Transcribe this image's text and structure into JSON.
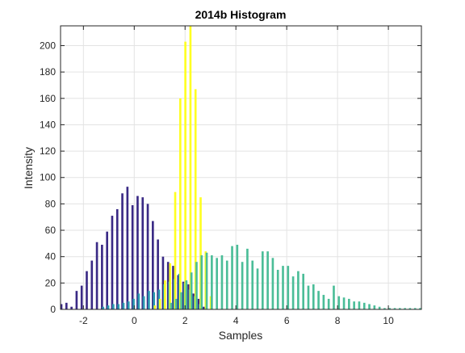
{
  "chart_data": {
    "type": "bar",
    "title": "2014b Histogram",
    "xlabel": "Samples",
    "ylabel": "Intensity",
    "xlim": [
      -2.9,
      11.3
    ],
    "ylim": [
      0,
      215
    ],
    "xticks": [
      -2,
      0,
      2,
      4,
      6,
      8,
      10
    ],
    "yticks": [
      0,
      20,
      40,
      60,
      80,
      100,
      120,
      140,
      160,
      180,
      200
    ],
    "grid": true,
    "legend": "none",
    "bin_width": 0.2,
    "series": [
      {
        "color": "#3a2a85",
        "x": [
          -2.8,
          -2.6,
          -2.4,
          -2.2,
          -2.0,
          -1.8,
          -1.6,
          -1.4,
          -1.2,
          -1.0,
          -0.8,
          -0.6,
          -0.4,
          -0.2,
          0.0,
          0.2,
          0.4,
          0.6,
          0.8,
          1.0,
          1.2,
          1.4,
          1.6,
          1.8,
          2.0,
          2.2,
          2.4,
          2.6,
          2.8
        ],
        "values": [
          4,
          5,
          2,
          14,
          18,
          29,
          37,
          51,
          49,
          59,
          71,
          76,
          88,
          93,
          79,
          86,
          85,
          80,
          67,
          53,
          40,
          36,
          33,
          26,
          21,
          19,
          12,
          8,
          2
        ]
      },
      {
        "color": "#2a9ab0",
        "x": [
          -1.2,
          -1.0,
          -0.8,
          -0.6,
          -0.4,
          -0.2,
          0.0,
          0.2,
          0.4,
          0.6,
          0.8,
          1.0,
          1.2,
          1.4,
          1.6,
          1.8,
          2.0,
          2.2,
          2.4,
          2.6
        ],
        "values": [
          2,
          3,
          4,
          4,
          5,
          6,
          8,
          12,
          10,
          14,
          13,
          15,
          19,
          21,
          23,
          27,
          20,
          15,
          10,
          4
        ]
      },
      {
        "color": "#ffff22",
        "x": [
          0.8,
          1.0,
          1.2,
          1.4,
          1.6,
          1.8,
          2.0,
          2.2,
          2.4,
          2.6,
          2.8,
          3.0
        ],
        "values": [
          3,
          8,
          22,
          35,
          89,
          160,
          203,
          215,
          167,
          85,
          44,
          10
        ]
      },
      {
        "color": "#4bbd98",
        "x": [
          1.4,
          1.6,
          1.8,
          2.0,
          2.2,
          2.4,
          2.6,
          2.8,
          3.0,
          3.2,
          3.4,
          3.6,
          3.8,
          4.0,
          4.2,
          4.4,
          4.6,
          4.8,
          5.0,
          5.2,
          5.4,
          5.6,
          5.8,
          6.0,
          6.2,
          6.4,
          6.6,
          6.8,
          7.0,
          7.2,
          7.4,
          7.6,
          7.8,
          8.0,
          8.2,
          8.4,
          8.6,
          8.8,
          9.0,
          9.2,
          9.4,
          9.6,
          9.8,
          10.0,
          10.2,
          10.4,
          10.6,
          10.8,
          11.0,
          11.2
        ],
        "values": [
          5,
          8,
          13,
          22,
          28,
          36,
          41,
          43,
          41,
          39,
          41,
          37,
          48,
          49,
          36,
          46,
          37,
          31,
          44,
          44,
          39,
          30,
          33,
          33,
          25,
          29,
          27,
          18,
          19,
          14,
          11,
          8,
          18,
          10,
          9,
          8,
          6,
          6,
          5,
          4,
          3,
          2,
          1,
          1,
          1,
          1,
          1,
          1,
          1,
          1
        ]
      }
    ]
  }
}
